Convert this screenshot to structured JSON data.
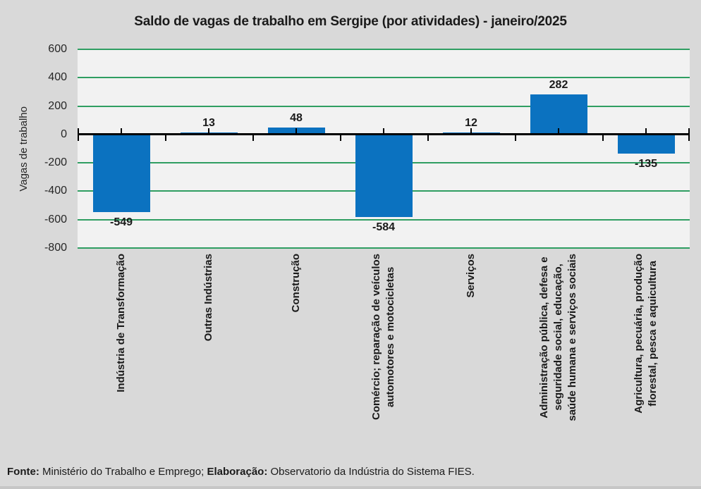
{
  "chart_data": {
    "type": "bar",
    "title": "Saldo de vagas de trabalho em Sergipe (por atividades) - janeiro/2025",
    "xlabel": "",
    "ylabel": "Vagas de trabalho",
    "categories": [
      "Indústria de Transformação",
      "Outras Indústrias",
      "Construção",
      "Comércio; reparação de veículos\nautomotores e motocicletas",
      "Serviços",
      "Administração pública, defesa e\nseguridade social, educação,\nsaúde humana e serviços sociais",
      "Agricultura, pecuária, produção\nflorestal, pesca e aquicultura"
    ],
    "values": [
      -549,
      13,
      48,
      -584,
      12,
      282,
      -135
    ],
    "data_labels": [
      "-549",
      "13",
      "48",
      "-584",
      "12",
      "282",
      "-135"
    ],
    "ylim": [
      -800,
      600
    ],
    "yticks": [
      600,
      400,
      200,
      0,
      -200,
      -400,
      -600,
      -800
    ],
    "grid": true,
    "legend": false,
    "colors": {
      "bar": "#0b72c0",
      "gridline": "#2f9e62",
      "plot_background": "#f2f2f2",
      "chart_background": "#d9d9d9",
      "axis": "#000000"
    }
  },
  "footer": {
    "fonte_label": "Fonte:",
    "fonte_text": " Ministério do Trabalho e Emprego; ",
    "elaboracao_label": "Elaboração:",
    "elaboracao_text": " Observatorio da Indústria do Sistema FIES."
  }
}
